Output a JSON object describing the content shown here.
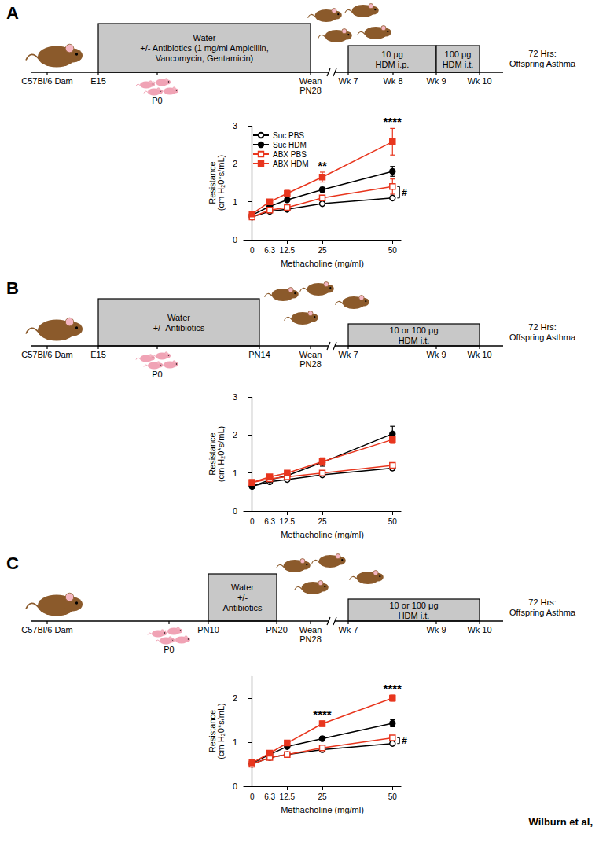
{
  "panel_labels": [
    "A",
    "B",
    "C"
  ],
  "footer": "Wilburn et al,",
  "diagrams": [
    {
      "dam": "C57Bl/6 Dam",
      "boxes": [
        [
          "Water",
          "+/- Antibiotics (1 mg/ml Ampicillin,",
          "Vancomycin, Gentamicin)"
        ],
        [
          "10 μg",
          "HDM i.p."
        ],
        [
          "100 μg",
          "HDM i.t."
        ]
      ],
      "labels": [
        [
          "E15"
        ],
        [
          "P0"
        ],
        [
          "Wean",
          "PN28"
        ],
        [
          "Wk 7"
        ],
        [
          "Wk 8"
        ],
        [
          "Wk 9"
        ],
        [
          "Wk 10"
        ]
      ],
      "end": [
        "72 Hrs:",
        "Offspring Asthma"
      ]
    },
    {
      "dam": "C57Bl/6 Dam",
      "boxes": [
        [
          "Water",
          "+/- Antibiotics"
        ],
        [
          "10 or 100 μg",
          "HDM i.t."
        ]
      ],
      "labels": [
        [
          "E15"
        ],
        [
          "P0"
        ],
        [
          "PN14"
        ],
        [
          "Wean",
          "PN28"
        ],
        [
          "Wk 7"
        ],
        [
          "Wk 9"
        ],
        [
          "Wk 10"
        ]
      ],
      "end": [
        "72 Hrs:",
        "Offspring Asthma"
      ]
    },
    {
      "dam": "C57Bl/6 Dam",
      "boxes": [
        [
          "Water",
          "+/-",
          "Antibiotics"
        ],
        [
          "10 or 100 μg",
          "HDM i.t."
        ]
      ],
      "labels": [
        [
          "P0"
        ],
        [
          "PN10"
        ],
        [
          "PN20"
        ],
        [
          "Wean",
          "PN28"
        ],
        [
          "Wk 7"
        ],
        [
          "Wk 9"
        ],
        [
          "Wk 10"
        ]
      ],
      "end": [
        "72 Hrs:",
        "Offspring Asthma"
      ]
    }
  ],
  "chart_data": [
    {
      "type": "line",
      "xlabel": "Methacholine (mg/ml)",
      "ylabel": "Resistance\n(cm H₂0*s/mL)",
      "x": [
        0,
        6.3,
        12.5,
        25,
        50
      ],
      "xlim": [
        -3,
        53
      ],
      "xticks": [
        0,
        6.3,
        12.5,
        25,
        50
      ],
      "ylim": [
        0,
        3
      ],
      "yticks": [
        0,
        1,
        2,
        3
      ],
      "grid": false,
      "legend": "upper left",
      "series": [
        {
          "name": "Suc PBS",
          "color": "#000000",
          "marker": "open_circle",
          "values": [
            0.6,
            0.75,
            0.8,
            0.95,
            1.1
          ],
          "errors": [
            0.03,
            0.03,
            0.03,
            0.04,
            0.05
          ]
        },
        {
          "name": "Suc HDM",
          "color": "#000000",
          "marker": "circle",
          "values": [
            0.65,
            0.88,
            1.05,
            1.32,
            1.8
          ],
          "errors": [
            0.03,
            0.04,
            0.05,
            0.06,
            0.13
          ]
        },
        {
          "name": "ABX PBS",
          "color": "#e8361e",
          "marker": "open_square",
          "values": [
            0.6,
            0.78,
            0.85,
            1.1,
            1.4
          ],
          "errors": [
            0.03,
            0.04,
            0.05,
            0.07,
            0.2
          ]
        },
        {
          "name": "ABX HDM",
          "color": "#e8361e",
          "marker": "square",
          "values": [
            0.68,
            1.0,
            1.22,
            1.65,
            2.58
          ],
          "errors": [
            0.04,
            0.06,
            0.08,
            0.13,
            0.35
          ]
        }
      ],
      "annotations": [
        {
          "text": "**",
          "x": 25,
          "position": "above"
        },
        {
          "text": "****",
          "x": 50,
          "position": "above"
        },
        {
          "text": "#",
          "x": 50,
          "position": "right",
          "between": [
            "Suc PBS",
            "ABX PBS"
          ]
        }
      ]
    },
    {
      "type": "line",
      "xlabel": "Methacholine (mg/ml)",
      "ylabel": "Resistance\n(cm H₂0*s/mL)",
      "x": [
        0,
        6.3,
        12.5,
        25,
        50
      ],
      "xlim": [
        -3,
        53
      ],
      "xticks": [
        0,
        6.3,
        12.5,
        25,
        50
      ],
      "ylim": [
        0,
        3
      ],
      "yticks": [
        0,
        1,
        2,
        3
      ],
      "grid": false,
      "series": [
        {
          "name": "Suc PBS",
          "color": "#000000",
          "marker": "open_circle",
          "values": [
            0.65,
            0.77,
            0.83,
            0.95,
            1.13
          ],
          "errors": [
            0.03,
            0.03,
            0.03,
            0.04,
            0.06
          ]
        },
        {
          "name": "Suc HDM",
          "color": "#000000",
          "marker": "circle",
          "values": [
            0.65,
            0.82,
            0.93,
            1.28,
            2.03
          ],
          "errors": [
            0.03,
            0.04,
            0.05,
            0.1,
            0.2
          ]
        },
        {
          "name": "ABX PBS",
          "color": "#e8361e",
          "marker": "open_square",
          "values": [
            0.75,
            0.85,
            0.9,
            1.0,
            1.2
          ],
          "errors": [
            0.03,
            0.03,
            0.04,
            0.05,
            0.07
          ]
        },
        {
          "name": "ABX HDM",
          "color": "#e8361e",
          "marker": "square",
          "values": [
            0.75,
            0.9,
            1.0,
            1.3,
            1.88
          ],
          "errors": [
            0.03,
            0.04,
            0.05,
            0.1,
            0.1
          ]
        }
      ],
      "annotations": []
    },
    {
      "type": "line",
      "xlabel": "Methacholine (mg/ml)",
      "ylabel": "Resistance\n(cm H₂0*s/mL)",
      "x": [
        0,
        6.3,
        12.5,
        25,
        50
      ],
      "xlim": [
        -3,
        53
      ],
      "xticks": [
        0,
        6.3,
        12.5,
        25,
        50
      ],
      "ylim": [
        0,
        2.5
      ],
      "yticks": [
        0,
        1,
        2
      ],
      "grid": false,
      "series": [
        {
          "name": "Suc PBS",
          "color": "#000000",
          "marker": "open_circle",
          "values": [
            0.5,
            0.65,
            0.72,
            0.83,
            0.97
          ],
          "errors": [
            0.02,
            0.03,
            0.03,
            0.03,
            0.04
          ]
        },
        {
          "name": "Suc HDM",
          "color": "#000000",
          "marker": "circle",
          "values": [
            0.52,
            0.72,
            0.9,
            1.08,
            1.43
          ],
          "errors": [
            0.02,
            0.03,
            0.04,
            0.05,
            0.08
          ]
        },
        {
          "name": "ABX PBS",
          "color": "#e8361e",
          "marker": "open_square",
          "values": [
            0.5,
            0.65,
            0.72,
            0.87,
            1.1
          ],
          "errors": [
            0.02,
            0.03,
            0.03,
            0.04,
            0.05
          ]
        },
        {
          "name": "ABX HDM",
          "color": "#e8361e",
          "marker": "square",
          "values": [
            0.53,
            0.75,
            0.98,
            1.42,
            2.0
          ],
          "errors": [
            0.02,
            0.04,
            0.05,
            0.06,
            0.07
          ]
        }
      ],
      "annotations": [
        {
          "text": "****",
          "x": 25,
          "position": "above"
        },
        {
          "text": "****",
          "x": 50,
          "position": "above"
        },
        {
          "text": "#",
          "x": 50,
          "position": "right",
          "between": [
            "Suc PBS",
            "ABX PBS"
          ]
        }
      ]
    }
  ]
}
